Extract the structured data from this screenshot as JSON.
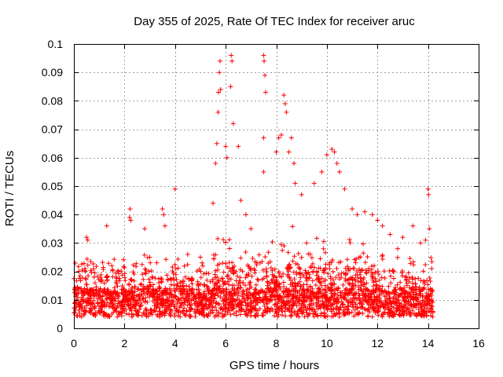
{
  "chart_data": {
    "type": "scatter",
    "title": "Day 355 of 2025, Rate Of TEC Index for receiver aruc",
    "xlabel": "GPS time / hours",
    "ylabel": "ROTI / TECUs",
    "xlim": [
      0,
      16
    ],
    "ylim": [
      0,
      0.1
    ],
    "x_ticks": [
      "0",
      "2",
      "4",
      "6",
      "8",
      "10",
      "12",
      "14",
      "16"
    ],
    "y_ticks": [
      "0",
      "0.01",
      "0.02",
      "0.03",
      "0.04",
      "0.05",
      "0.06",
      "0.07",
      "0.08",
      "0.09",
      "0.1"
    ],
    "grid": true,
    "marker": "+",
    "color": "#ff0000",
    "data_range_hours": [
      0,
      14.2
    ],
    "series": [
      {
        "name": "ROTI",
        "points": [
          [
            0.5,
            0.032
          ],
          [
            0.55,
            0.031
          ],
          [
            1.3,
            0.036
          ],
          [
            2.2,
            0.039
          ],
          [
            2.22,
            0.042
          ],
          [
            2.25,
            0.038
          ],
          [
            2.8,
            0.035
          ],
          [
            3.5,
            0.042
          ],
          [
            3.55,
            0.04
          ],
          [
            3.6,
            0.036
          ],
          [
            4.0,
            0.049
          ],
          [
            5.5,
            0.044
          ],
          [
            5.6,
            0.058
          ],
          [
            5.65,
            0.065
          ],
          [
            5.7,
            0.076
          ],
          [
            5.72,
            0.083
          ],
          [
            5.75,
            0.09
          ],
          [
            5.78,
            0.094
          ],
          [
            5.8,
            0.084
          ],
          [
            6.0,
            0.064
          ],
          [
            6.05,
            0.06
          ],
          [
            6.2,
            0.085
          ],
          [
            6.22,
            0.096
          ],
          [
            6.25,
            0.094
          ],
          [
            6.3,
            0.072
          ],
          [
            6.5,
            0.064
          ],
          [
            6.6,
            0.045
          ],
          [
            6.8,
            0.04
          ],
          [
            7.0,
            0.035
          ],
          [
            7.5,
            0.096
          ],
          [
            7.52,
            0.094
          ],
          [
            7.55,
            0.089
          ],
          [
            7.58,
            0.083
          ],
          [
            7.5,
            0.067
          ],
          [
            7.5,
            0.055
          ],
          [
            8.0,
            0.062
          ],
          [
            8.1,
            0.067
          ],
          [
            8.2,
            0.068
          ],
          [
            8.3,
            0.082
          ],
          [
            8.35,
            0.079
          ],
          [
            8.4,
            0.076
          ],
          [
            8.5,
            0.062
          ],
          [
            8.6,
            0.067
          ],
          [
            8.7,
            0.058
          ],
          [
            8.75,
            0.051
          ],
          [
            9.0,
            0.047
          ],
          [
            9.5,
            0.051
          ],
          [
            9.8,
            0.055
          ],
          [
            10.0,
            0.061
          ],
          [
            10.2,
            0.063
          ],
          [
            10.3,
            0.062
          ],
          [
            10.4,
            0.058
          ],
          [
            10.5,
            0.055
          ],
          [
            10.7,
            0.049
          ],
          [
            11.0,
            0.042
          ],
          [
            11.2,
            0.04
          ],
          [
            11.5,
            0.041
          ],
          [
            11.8,
            0.04
          ],
          [
            12.0,
            0.038
          ],
          [
            12.2,
            0.036
          ],
          [
            12.5,
            0.033
          ],
          [
            13.0,
            0.032
          ],
          [
            13.4,
            0.036
          ],
          [
            13.7,
            0.03
          ],
          [
            14.0,
            0.049
          ],
          [
            14.02,
            0.047
          ],
          [
            14.05,
            0.035
          ],
          [
            0.2,
            0.02
          ],
          [
            0.8,
            0.018
          ],
          [
            1.5,
            0.022
          ],
          [
            3.0,
            0.025
          ],
          [
            4.5,
            0.026
          ],
          [
            5.0,
            0.025
          ],
          [
            9.2,
            0.03
          ],
          [
            12.8,
            0.028
          ],
          [
            13.9,
            0.031
          ]
        ]
      }
    ]
  }
}
